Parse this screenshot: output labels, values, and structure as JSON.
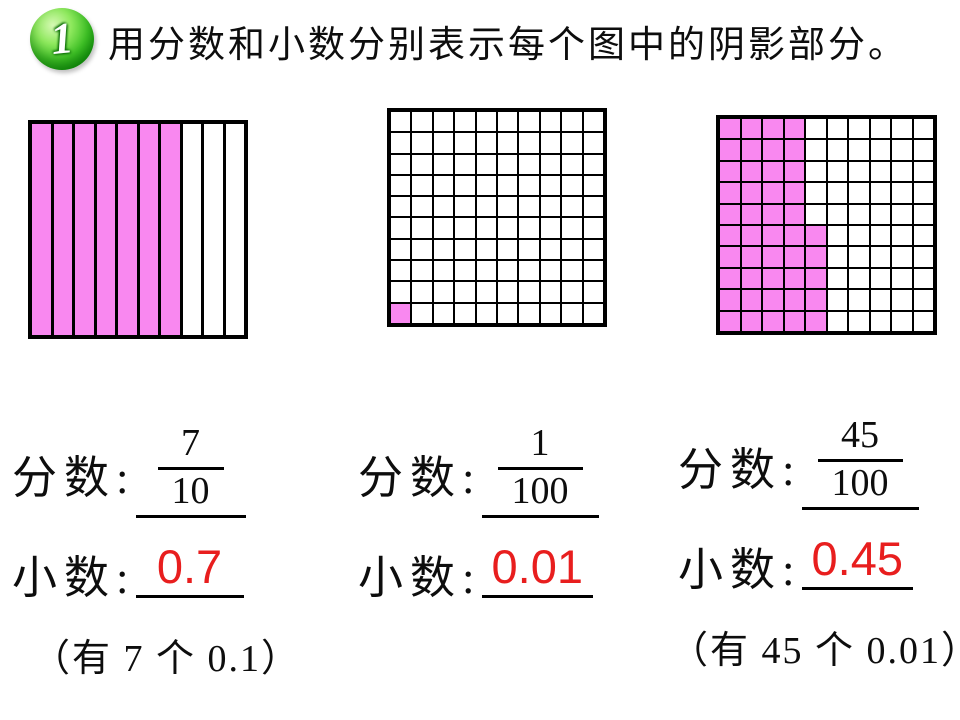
{
  "header": {
    "badge": "1",
    "title": "用分数和小数分别表示每个图中的阴影部分。"
  },
  "colors": {
    "pink": "#f988f0",
    "red": "#e81e1e",
    "badge_green": "#2cb41c",
    "grid_line": "#000000"
  },
  "grids": [
    {
      "name": "tenths-grid",
      "type": "strips",
      "cols": 10,
      "shaded_strips": 7
    },
    {
      "name": "hundredths-grid-one",
      "type": "cells",
      "cols": 10,
      "rows": 10,
      "shaded_cells": [
        [
          1,
          10
        ]
      ]
    },
    {
      "name": "hundredths-grid-fortyfive",
      "type": "cells",
      "cols": 10,
      "rows": 10,
      "shaded_ranges": [
        {
          "cols": [
            1,
            4
          ],
          "rows": [
            1,
            10
          ]
        },
        {
          "cols": [
            5,
            5
          ],
          "rows": [
            6,
            10
          ]
        }
      ]
    }
  ],
  "answers": [
    {
      "fraction_label": "分数:",
      "numerator": "7",
      "denominator": "10",
      "decimal_label": "小数:",
      "decimal_value": "0.7",
      "note": "（有 7 个 0.1）"
    },
    {
      "fraction_label": "分数:",
      "numerator": "1",
      "denominator": "100",
      "decimal_label": "小数:",
      "decimal_value": "0.01",
      "note": ""
    },
    {
      "fraction_label": "分数:",
      "numerator": "45",
      "denominator": "100",
      "decimal_label": "小数:",
      "decimal_value": "0.45",
      "note": "（有 45 个 0.01）"
    }
  ]
}
